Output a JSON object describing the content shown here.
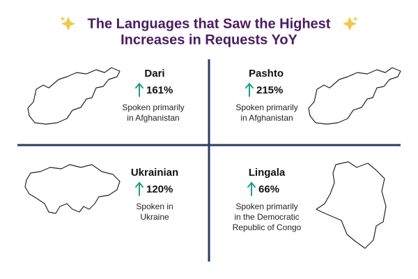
{
  "header": {
    "title": [
      "The Languages that Saw the Highest",
      "Increases in Requests YoY"
    ]
  },
  "languages": [
    {
      "name": "Dari",
      "change": "161%",
      "description": [
        "Spoken primarily",
        "in Afghanistan"
      ]
    },
    {
      "name": "Pashto",
      "change": "215%",
      "description": [
        "Spoken primarily",
        "in Afghanistan"
      ]
    },
    {
      "name": "Ukrainian",
      "change": "120%",
      "description": [
        "Spoken in",
        "Ukraine"
      ]
    },
    {
      "name": "Lingala",
      "change": "66%",
      "description": [
        "Spoken primarily",
        "in the Democratic",
        "Republic of Congo"
      ]
    }
  ]
}
